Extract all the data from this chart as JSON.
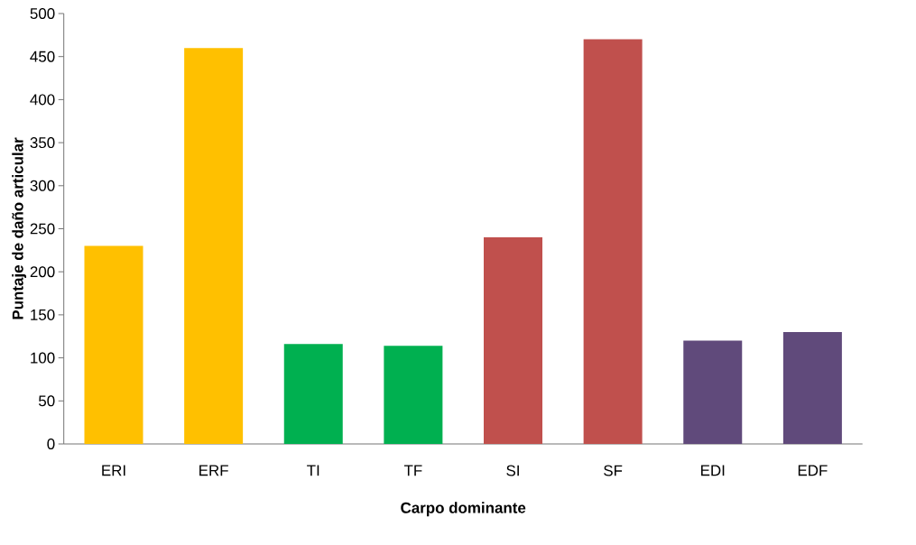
{
  "chart_data": {
    "type": "bar",
    "xlabel": "Carpo dominante",
    "ylabel": "Puntaje de daño articular",
    "categories": [
      "ERI",
      "ERF",
      "TI",
      "TF",
      "SI",
      "SF",
      "EDI",
      "EDF"
    ],
    "values": [
      230,
      460,
      116,
      114,
      240,
      470,
      120,
      130
    ],
    "colors": [
      "#ffc000",
      "#ffc000",
      "#00b050",
      "#00b050",
      "#c0504d",
      "#c0504d",
      "#604a7b",
      "#604a7b"
    ],
    "ylim": [
      0,
      500
    ],
    "yticks": [
      0,
      50,
      100,
      150,
      200,
      250,
      300,
      350,
      400,
      450,
      500
    ],
    "grid": false
  }
}
